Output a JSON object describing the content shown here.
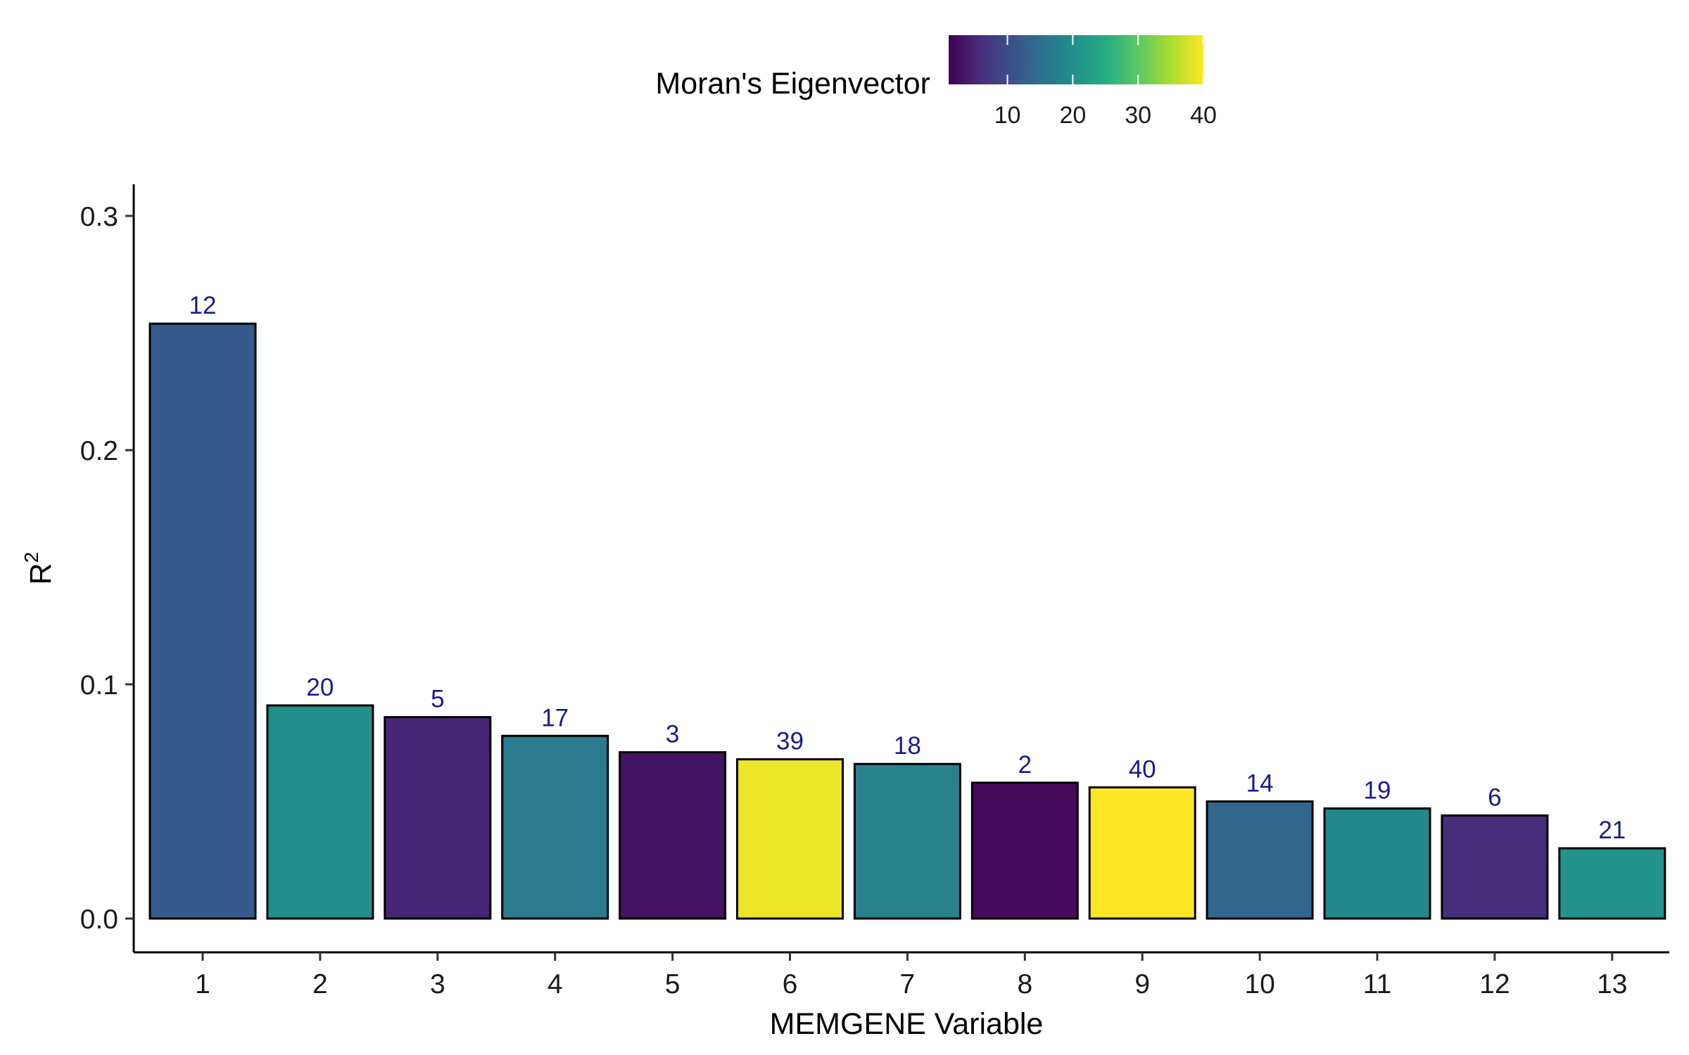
{
  "chart_data": {
    "type": "bar",
    "categories": [
      "1",
      "2",
      "3",
      "4",
      "5",
      "6",
      "7",
      "8",
      "9",
      "10",
      "11",
      "12",
      "13"
    ],
    "values": [
      0.254,
      0.091,
      0.086,
      0.078,
      0.071,
      0.068,
      0.066,
      0.058,
      0.056,
      0.05,
      0.047,
      0.044,
      0.03
    ],
    "bar_labels": [
      "12",
      "20",
      "5",
      "17",
      "3",
      "39",
      "18",
      "2",
      "40",
      "14",
      "19",
      "6",
      "21"
    ],
    "eigenvector": [
      12,
      20,
      5,
      17,
      3,
      39,
      18,
      2,
      40,
      14,
      19,
      6,
      21
    ],
    "xlabel": "MEMGENE Variable",
    "ylabel_base": "R",
    "ylabel_sup": "2",
    "ylim": [
      0,
      0.3
    ],
    "yticks": [
      0.0,
      0.1,
      0.2,
      0.3
    ],
    "ytick_labels": [
      "0.0",
      "0.1",
      "0.2",
      "0.3"
    ],
    "grid": false,
    "legend": {
      "title": "Moran's Eigenvector",
      "position": "top",
      "colormap": "viridis",
      "range": [
        1,
        40
      ],
      "ticks": [
        10,
        20,
        30,
        40
      ],
      "tick_labels": [
        "10",
        "20",
        "30",
        "40"
      ]
    }
  }
}
